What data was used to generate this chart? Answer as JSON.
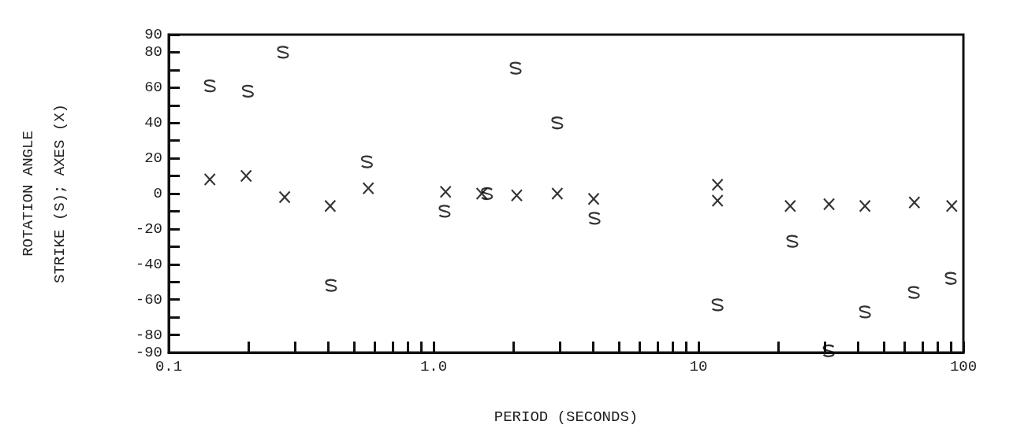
{
  "chart_data": {
    "type": "scatter",
    "xlabel": "PERIOD (SECONDS)",
    "ylabel": "ROTATION ANGLE\nSTRIKE (S); AXES (X)",
    "log": "x",
    "xlim": [
      0.1,
      100
    ],
    "ylim": [
      -90,
      90
    ],
    "xticks": [
      {
        "value": 0.1,
        "label": "0.1"
      },
      {
        "value": 0.2,
        "label": null
      },
      {
        "value": 0.3,
        "label": null
      },
      {
        "value": 0.4,
        "label": null
      },
      {
        "value": 0.5,
        "label": null
      },
      {
        "value": 0.6,
        "label": null
      },
      {
        "value": 0.7,
        "label": null
      },
      {
        "value": 0.8,
        "label": null
      },
      {
        "value": 0.9,
        "label": null
      },
      {
        "value": 1,
        "label": "1.0"
      },
      {
        "value": 2,
        "label": null
      },
      {
        "value": 3,
        "label": null
      },
      {
        "value": 4,
        "label": null
      },
      {
        "value": 5,
        "label": null
      },
      {
        "value": 6,
        "label": null
      },
      {
        "value": 7,
        "label": null
      },
      {
        "value": 8,
        "label": null
      },
      {
        "value": 9,
        "label": null
      },
      10,
      {
        "value": 20,
        "label": null
      },
      {
        "value": 30,
        "label": null
      },
      {
        "value": 40,
        "label": null
      },
      {
        "value": 50,
        "label": null
      },
      {
        "value": 60,
        "label": null
      },
      {
        "value": 70,
        "label": null
      },
      {
        "value": 80,
        "label": null
      },
      {
        "value": 90,
        "label": null
      },
      100
    ],
    "yticks": [
      -90,
      -80,
      {
        "value": -70,
        "label": null
      },
      -60,
      {
        "value": -50,
        "label": null
      },
      -40,
      {
        "value": -30,
        "label": null
      },
      -20,
      {
        "value": -10,
        "label": null
      },
      0,
      {
        "value": 10,
        "label": null
      },
      20,
      {
        "value": 30,
        "label": null
      },
      40,
      {
        "value": 50,
        "label": null
      },
      60,
      {
        "value": 70,
        "label": null
      },
      80,
      90
    ],
    "grid": false,
    "series": [
      {
        "color": "#000000",
        "x": [
          0.143,
          0.199,
          0.27,
          0.41,
          0.56,
          1.1,
          1.59,
          2.04,
          2.93,
          4.05,
          11.8,
          22.6,
          31,
          42.5,
          65,
          89.6
        ],
        "values": [
          61,
          58,
          80,
          -52,
          18,
          -10,
          0,
          71,
          40,
          -14,
          -63,
          -27,
          -89,
          -67,
          -56,
          -48
        ]
      },
      {
        "color": "#000000",
        "marker": "cross",
        "x": [
          0.143,
          0.196,
          0.274,
          0.407,
          0.567,
          1.11,
          1.52,
          2.06,
          2.93,
          4.02,
          11.8,
          11.8,
          22.2,
          31.1,
          42.5,
          65.3,
          90.4
        ],
        "values": [
          8,
          10,
          -2,
          -7,
          3,
          1,
          0,
          -1,
          0,
          -3,
          5,
          -4,
          -7,
          -6,
          -7,
          -5,
          -7
        ]
      }
    ]
  }
}
